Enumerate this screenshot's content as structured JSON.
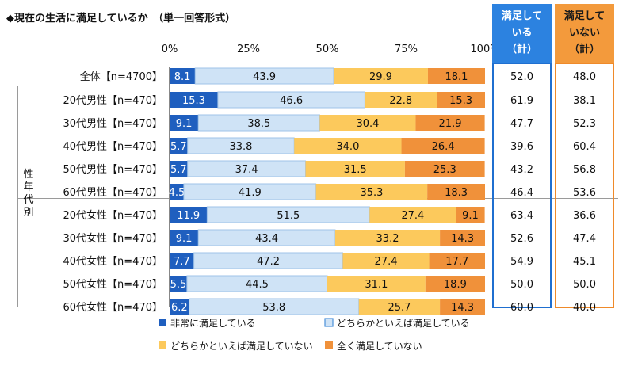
{
  "chart_data": {
    "type": "bar",
    "stacked": true,
    "orientation": "horizontal",
    "title": "◆現在の生活に満足しているか　（単一回答形式）",
    "xlim": [
      0,
      100
    ],
    "x_ticks": [
      "0%",
      "25%",
      "50%",
      "75%",
      "100%"
    ],
    "categories": [
      "全体【n=4700】",
      "20代男性【n=470】",
      "30代男性【n=470】",
      "40代男性【n=470】",
      "50代男性【n=470】",
      "60代男性【n=470】",
      "20代女性【n=470】",
      "30代女性【n=470】",
      "40代女性【n=470】",
      "50代女性【n=470】",
      "60代女性【n=470】"
    ],
    "group_label": "性年代別",
    "series": [
      {
        "name": "非常に満足している",
        "color": "#1f5fbf",
        "values": [
          8.1,
          15.3,
          9.1,
          5.7,
          5.7,
          4.5,
          11.9,
          9.1,
          7.7,
          5.5,
          6.2
        ]
      },
      {
        "name": "どちらかといえば満足している",
        "color": "#cfe3f6",
        "values": [
          43.9,
          46.6,
          38.5,
          33.8,
          37.4,
          41.9,
          51.5,
          43.4,
          47.2,
          44.5,
          53.8
        ]
      },
      {
        "name": "どちらかといえば満足していない",
        "color": "#fcc95c",
        "values": [
          29.9,
          22.8,
          30.4,
          34.0,
          31.5,
          35.3,
          27.4,
          33.2,
          27.4,
          31.1,
          25.7
        ]
      },
      {
        "name": "全く満足していない",
        "color": "#f0913a",
        "values": [
          18.1,
          15.3,
          21.9,
          26.4,
          25.3,
          18.3,
          9.1,
          14.3,
          17.7,
          18.9,
          14.3
        ]
      }
    ],
    "summary_columns": [
      {
        "header": [
          "満足して",
          "いる",
          "（計）"
        ],
        "color": "#2c82e0",
        "border": "#1f6fd0",
        "values": [
          "52.0",
          "61.9",
          "47.7",
          "39.6",
          "43.2",
          "46.4",
          "63.4",
          "52.6",
          "54.9",
          "50.0",
          "60.0"
        ]
      },
      {
        "header": [
          "満足して",
          "いない",
          "（計）"
        ],
        "color": "#f39a3c",
        "border": "#ef8a2a",
        "values": [
          "48.0",
          "38.1",
          "52.3",
          "60.4",
          "56.8",
          "53.6",
          "36.6",
          "47.4",
          "45.1",
          "50.0",
          "40.0"
        ]
      }
    ],
    "legend": [
      {
        "label": "非常に満足している",
        "color": "#1f5fbf"
      },
      {
        "label": "どちらかといえば満足している",
        "color": "#cfe3f6"
      },
      {
        "label": "どちらかといえば満足していない",
        "color": "#fcc95c"
      },
      {
        "label": "全く満足していない",
        "color": "#f0913a"
      }
    ]
  }
}
